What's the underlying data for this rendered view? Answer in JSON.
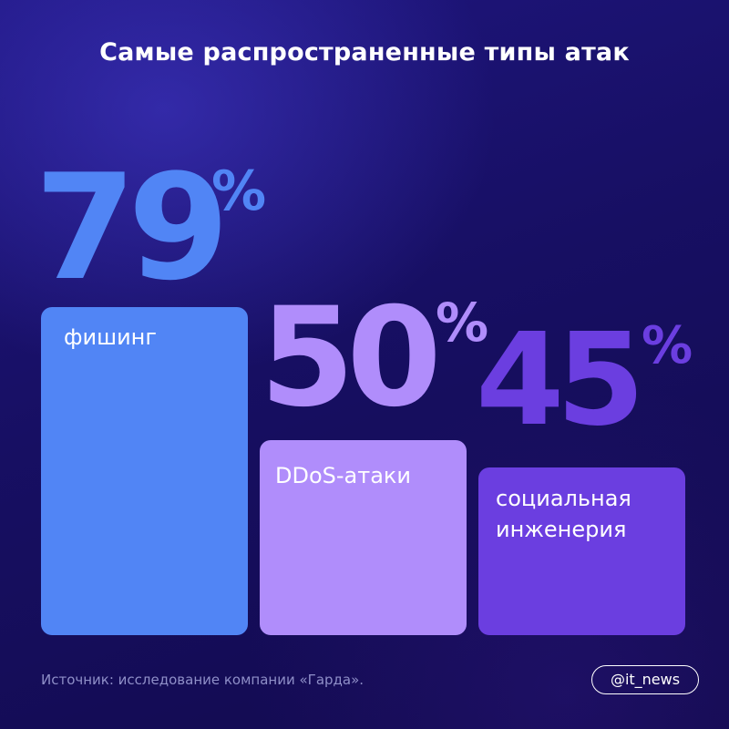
{
  "title": "Самые распространенные типы атак",
  "chart_data": {
    "type": "bar",
    "title": "Самые распространенные типы атак",
    "categories": [
      "фишинг",
      "DDoS-атаки",
      "социальная инженерия"
    ],
    "values": [
      79,
      50,
      45
    ],
    "value_labels": [
      "79",
      "50",
      "45"
    ],
    "unit": "%",
    "xlabel": "",
    "ylabel": "",
    "ylim": [
      0,
      100
    ],
    "grid": false,
    "colors": [
      "#5185f5",
      "#b08dfb",
      "#6b3ee0"
    ],
    "number_colors": [
      "#5185f5",
      "#b08dfb",
      "#6b3ee0"
    ]
  },
  "bars": [
    {
      "label": "фишинг"
    },
    {
      "label": "DDoS-атаки"
    },
    {
      "label": "социальная\nинженерия"
    }
  ],
  "source": "Источник: исследование компании «Гарда».",
  "handle": "@it_news"
}
